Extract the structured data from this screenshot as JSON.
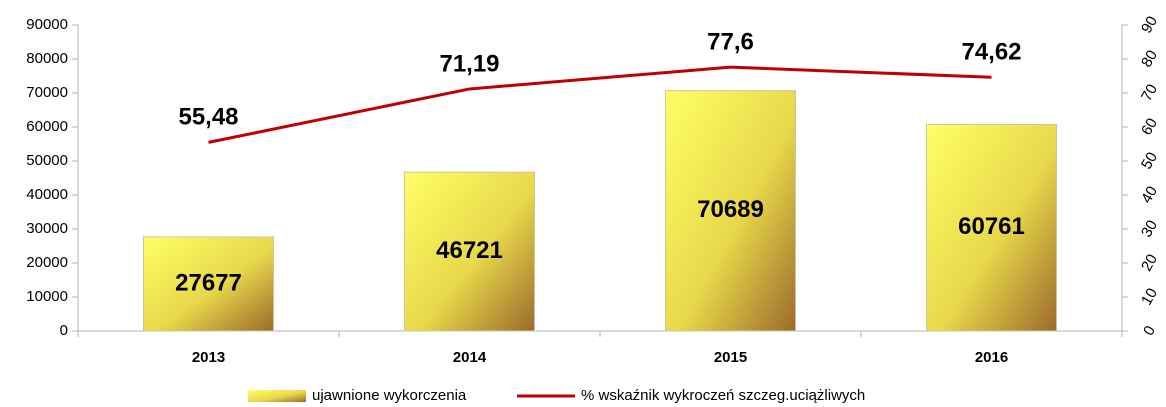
{
  "chart_data": {
    "type": "bar",
    "categories": [
      "2013",
      "2014",
      "2015",
      "2016"
    ],
    "series": [
      {
        "name": "ujawnione wykorczenia",
        "color": "#ffff66",
        "values": [
          27677,
          46721,
          70689,
          60761
        ]
      },
      {
        "name": "% wskaźnik wykroczeń szczeg.uciążliwych",
        "color": "#c00000",
        "type": "line",
        "axis": "y2",
        "values": [
          55.48,
          71.19,
          77.6,
          74.62
        ],
        "value_labels": [
          "55,48",
          "71,19",
          "77,6",
          "74,62"
        ]
      }
    ],
    "ylim": [
      0,
      90000
    ],
    "yticks": [
      0,
      10000,
      20000,
      30000,
      40000,
      50000,
      60000,
      70000,
      80000,
      90000
    ],
    "y2lim": [
      0,
      90
    ],
    "y2ticks": [
      0,
      10,
      20,
      30,
      40,
      50,
      60,
      70,
      80,
      90
    ],
    "legend": "bottom"
  }
}
